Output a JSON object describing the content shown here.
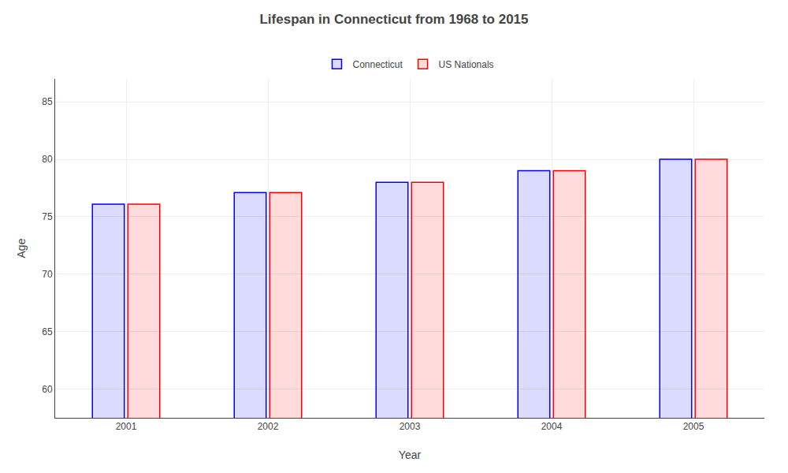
{
  "chart_data": {
    "type": "bar",
    "title": "Lifespan in Connecticut from 1968 to 2015",
    "xlabel": "Year",
    "ylabel": "Age",
    "categories": [
      "2001",
      "2002",
      "2003",
      "2004",
      "2005"
    ],
    "series": [
      {
        "name": "Connecticut",
        "color": "#0000ff",
        "values": [
          76.1,
          77.1,
          78.0,
          79.0,
          80.0
        ]
      },
      {
        "name": "US Nationals",
        "color": "#ff0000",
        "values": [
          76.1,
          77.1,
          78.0,
          79.0,
          80.0
        ]
      }
    ],
    "ylim": [
      57.5,
      87
    ],
    "yticks": [
      60,
      65,
      70,
      75,
      80,
      85
    ],
    "grid": true,
    "legend": "top"
  }
}
